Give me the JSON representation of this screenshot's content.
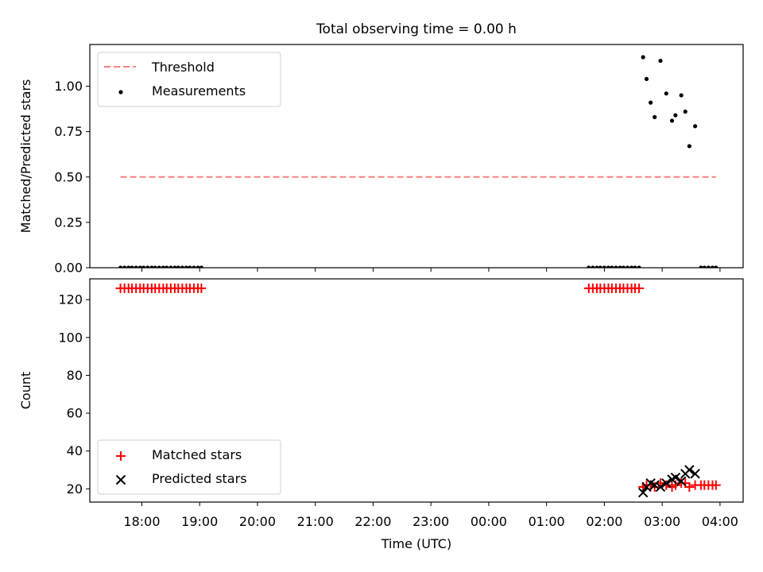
{
  "title": "Total observing time = 0.00 h",
  "chart_data": [
    {
      "type": "scatter",
      "panel": "top",
      "title": "Total observing time = 0.00 h",
      "xlabel": "",
      "ylabel": "Matched/Predicted stars",
      "x_unit": "hours_since_18:00_UTC",
      "xlim": [
        -0.9,
        10.4
      ],
      "ylim": [
        0.0,
        1.23
      ],
      "yticks": [
        0.0,
        0.25,
        0.5,
        0.75,
        1.0
      ],
      "ytick_labels": [
        "0.00",
        "0.25",
        "0.50",
        "0.75",
        "1.00"
      ],
      "grid": false,
      "legend": "upper left",
      "series": [
        {
          "name": "Threshold",
          "kind": "line",
          "style": "dashed",
          "color": "#ff7f7f",
          "x": [
            -0.37,
            9.93
          ],
          "y": [
            0.5,
            0.5
          ]
        },
        {
          "name": "Measurements",
          "kind": "scatter",
          "color": "#000000",
          "x": [
            -0.37,
            -0.3,
            -0.23,
            -0.17,
            -0.1,
            -0.03,
            0.03,
            0.1,
            0.17,
            0.23,
            0.3,
            0.37,
            0.43,
            0.5,
            0.57,
            0.63,
            0.7,
            0.77,
            0.83,
            0.9,
            0.97,
            1.03,
            7.73,
            7.8,
            7.87,
            7.93,
            8.0,
            8.07,
            8.13,
            8.2,
            8.27,
            8.33,
            8.4,
            8.47,
            8.53,
            8.6,
            8.67,
            8.73,
            8.8,
            8.87,
            8.97,
            9.07,
            9.17,
            9.23,
            9.33,
            9.4,
            9.47,
            9.57,
            9.67,
            9.73,
            9.8,
            9.87,
            9.93
          ],
          "y": [
            0,
            0,
            0,
            0,
            0,
            0,
            0,
            0,
            0,
            0,
            0,
            0,
            0,
            0,
            0,
            0,
            0,
            0,
            0,
            0,
            0,
            0,
            0,
            0,
            0,
            0,
            0,
            0,
            0,
            0,
            0,
            0,
            0,
            0,
            0,
            0,
            1.16,
            1.04,
            0.91,
            0.83,
            1.14,
            0.96,
            0.81,
            0.84,
            0.95,
            0.86,
            0.67,
            0.78,
            0,
            0,
            0,
            0,
            0
          ]
        }
      ]
    },
    {
      "type": "scatter",
      "panel": "bottom",
      "xlabel": "Time (UTC)",
      "ylabel": "Count",
      "x_unit": "hours_since_18:00_UTC",
      "xlim": [
        -0.9,
        10.4
      ],
      "ylim": [
        13,
        131
      ],
      "yticks": [
        20,
        40,
        60,
        80,
        100,
        120
      ],
      "ytick_labels": [
        "20",
        "40",
        "60",
        "80",
        "100",
        "120"
      ],
      "xticks": [
        0,
        1,
        2,
        3,
        4,
        5,
        6,
        7,
        8,
        9,
        10
      ],
      "xtick_labels": [
        "18:00",
        "19:00",
        "20:00",
        "21:00",
        "22:00",
        "23:00",
        "00:00",
        "01:00",
        "02:00",
        "03:00",
        "04:00"
      ],
      "grid": false,
      "legend": "lower left",
      "series": [
        {
          "name": "Matched stars",
          "marker": "plus",
          "color": "#ff0000",
          "x": [
            -0.37,
            -0.3,
            -0.23,
            -0.17,
            -0.1,
            -0.03,
            0.03,
            0.1,
            0.17,
            0.23,
            0.3,
            0.37,
            0.43,
            0.5,
            0.57,
            0.63,
            0.7,
            0.77,
            0.83,
            0.9,
            0.97,
            1.03,
            7.73,
            7.8,
            7.87,
            7.93,
            8.0,
            8.07,
            8.13,
            8.2,
            8.27,
            8.33,
            8.4,
            8.47,
            8.53,
            8.6,
            8.67,
            8.73,
            8.8,
            8.87,
            8.97,
            9.07,
            9.17,
            9.23,
            9.33,
            9.4,
            9.47,
            9.57,
            9.67,
            9.73,
            9.8,
            9.87,
            9.93
          ],
          "y": [
            126,
            126,
            126,
            126,
            126,
            126,
            126,
            126,
            126,
            126,
            126,
            126,
            126,
            126,
            126,
            126,
            126,
            126,
            126,
            126,
            126,
            126,
            126,
            126,
            126,
            126,
            126,
            126,
            126,
            126,
            126,
            126,
            126,
            126,
            126,
            126,
            21,
            22,
            22,
            21,
            23,
            22,
            21,
            22,
            23,
            23,
            21,
            22,
            22,
            22,
            22,
            22,
            22
          ]
        },
        {
          "name": "Predicted stars",
          "marker": "x",
          "color": "#000000",
          "x": [
            8.67,
            8.73,
            8.8,
            8.87,
            8.97,
            9.07,
            9.17,
            9.23,
            9.33,
            9.4,
            9.47,
            9.57
          ],
          "y": [
            18,
            21,
            23,
            22,
            21,
            23,
            25,
            26,
            24,
            28,
            30,
            28
          ]
        }
      ]
    }
  ]
}
